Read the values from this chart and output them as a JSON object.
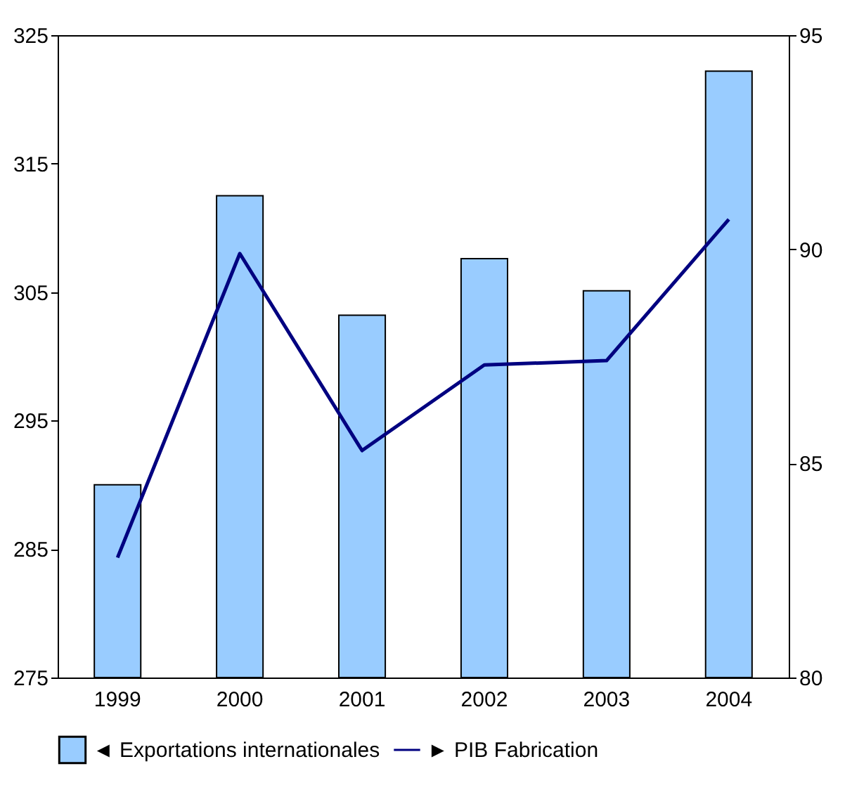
{
  "chart_data": {
    "type": "bar",
    "categories": [
      "1999",
      "2000",
      "2001",
      "2002",
      "2003",
      "2004"
    ],
    "series": [
      {
        "name": "◄ Exportations internationales",
        "color": "#99ccff",
        "values": [
          290,
          312.5,
          303.2,
          307.6,
          305.1,
          322.2
        ]
      },
      {
        "name": "► PIB Fabrication",
        "type": "line",
        "axis": "y2",
        "color": "#000080",
        "values": [
          82.8,
          89.9,
          85.3,
          87.3,
          87.4,
          90.7
        ]
      }
    ],
    "ylim": [
      275,
      325
    ],
    "yticks": [
      275,
      285,
      295,
      305,
      315,
      325
    ],
    "y2lim": [
      80,
      95
    ],
    "y2ticks": [
      80,
      85,
      90,
      95
    ],
    "legend": "bottom",
    "grid": false,
    "marker": "none"
  }
}
